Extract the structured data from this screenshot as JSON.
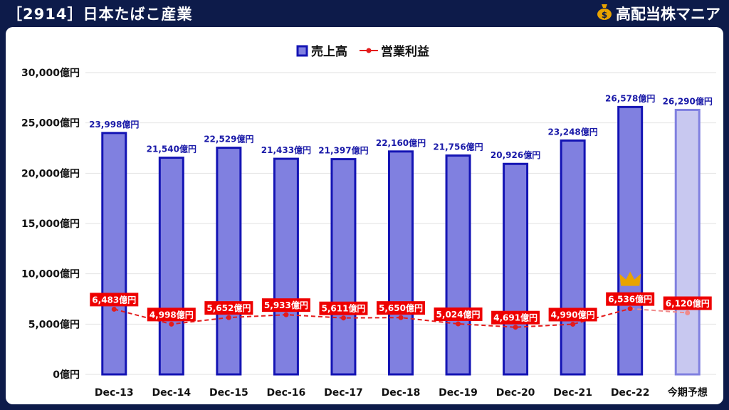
{
  "header": {
    "title": "［2914］日本たばこ産業",
    "brand": "高配当株マニア"
  },
  "colors": {
    "background": "#0d1b4a",
    "bar_fill": "#8080e0",
    "bar_stroke": "#1414b4",
    "forecast_fill": "#c8c8f0",
    "forecast_stroke": "#8080e0",
    "line": "#e41b1b",
    "label_box": "#ee0000",
    "revenue_label": "#1a1aa8",
    "crown": "#e8a300"
  },
  "icons": {
    "brand": "money-bag-icon",
    "highlight": "crown-icon"
  },
  "chart_data": {
    "type": "bar",
    "categories": [
      "Dec-13",
      "Dec-14",
      "Dec-15",
      "Dec-16",
      "Dec-17",
      "Dec-18",
      "Dec-19",
      "Dec-20",
      "Dec-21",
      "Dec-22",
      "今期予想"
    ],
    "series": [
      {
        "name": "売上高",
        "type": "bar",
        "values": [
          23998,
          21540,
          22529,
          21433,
          21397,
          22160,
          21756,
          20926,
          23248,
          26578,
          26290
        ],
        "labels": [
          "23,998億円",
          "21,540億円",
          "22,529億円",
          "21,433億円",
          "21,397億円",
          "22,160億円",
          "21,756億円",
          "20,926億円",
          "23,248億円",
          "26,578億円",
          "26,290億円"
        ]
      },
      {
        "name": "営業利益",
        "type": "line",
        "values": [
          6483,
          4998,
          5652,
          5933,
          5611,
          5650,
          5024,
          4691,
          4990,
          6536,
          6120
        ],
        "labels": [
          "6,483億円",
          "4,998億円",
          "5,652億円",
          "5,933億円",
          "5,611億円",
          "5,650億円",
          "5,024億円",
          "4,691億円",
          "4,990億円",
          "6,536億円",
          "6,120億円"
        ]
      }
    ],
    "forecast_category": "今期予想",
    "highlight_category": "Dec-22",
    "ylim": [
      0,
      30000
    ],
    "yticks": [
      0,
      5000,
      10000,
      15000,
      20000,
      25000,
      30000
    ],
    "ytick_labels": [
      "0億円",
      "5,000億円",
      "10,000億円",
      "15,000億円",
      "20,000億円",
      "25,000億円",
      "30,000億円"
    ],
    "legend": [
      "売上高",
      "営業利益"
    ],
    "legend_position": "top-center",
    "grid": true
  }
}
